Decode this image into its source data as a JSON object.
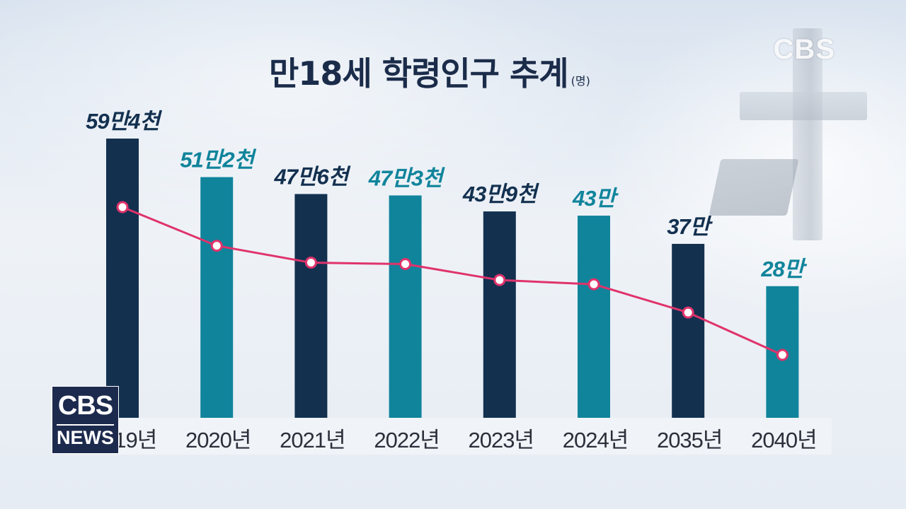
{
  "page": {
    "title": "만18세 학령인구 추계",
    "unit": "(명)",
    "corner_logo": "CBS",
    "news_logo": {
      "top": "CBS",
      "bottom": "NEWS"
    }
  },
  "colors": {
    "bar_dark": "#13304f",
    "bar_teal": "#10849b",
    "label_dark": "#13304f",
    "label_teal": "#10849b",
    "line": "#e0336b"
  },
  "chart_data": {
    "type": "bar",
    "title": "만18세 학령인구 추계",
    "unit": "(명)",
    "categories": [
      "2019년",
      "2020년",
      "2021년",
      "2022년",
      "2023년",
      "2024년",
      "2035년",
      "2040년"
    ],
    "values": [
      594000,
      512000,
      476000,
      473000,
      439000,
      430000,
      370000,
      280000
    ],
    "value_labels": [
      "59만4천",
      "51만2천",
      "47만6천",
      "47만3천",
      "43만9천",
      "43만",
      "37만",
      "28만"
    ],
    "bar_colors": [
      "dark",
      "teal",
      "dark",
      "teal",
      "dark",
      "teal",
      "dark",
      "teal"
    ],
    "overlay_line": true,
    "grid": false,
    "legend": "none"
  }
}
